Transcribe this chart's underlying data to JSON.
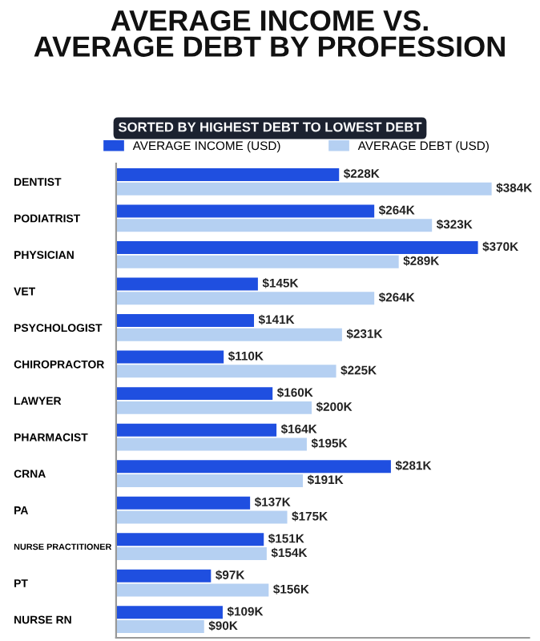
{
  "chart_data": {
    "type": "bar",
    "orientation": "horizontal",
    "title": "AVERAGE INCOME VS.\nAVERAGE DEBT BY PROFESSION",
    "subtitle": "SORTED BY HIGHEST DEBT TO LOWEST DEBT",
    "categories": [
      "DENTIST",
      "PODIATRIST",
      "PHYSICIAN",
      "VET",
      "PSYCHOLOGIST",
      "CHIROPRACTOR",
      "LAWYER",
      "PHARMACIST",
      "CRNA",
      "PA",
      "NURSE PRACTITIONER",
      "PT",
      "NURSE RN"
    ],
    "series": [
      {
        "name": "AVERAGE INCOME (USD)",
        "color": "#1f4fe0",
        "values": [
          228,
          264,
          370,
          145,
          141,
          110,
          160,
          164,
          281,
          137,
          151,
          97,
          109
        ],
        "value_labels": [
          "$228K",
          "$264K",
          "$370K",
          "$145K",
          "$141K",
          "$110K",
          "$160K",
          "$164K",
          "$281K",
          "$137K",
          "$151K",
          "$97K",
          "$109K"
        ]
      },
      {
        "name": "AVERAGE DEBT (USD)",
        "color": "#b5d0f2",
        "values": [
          384,
          323,
          289,
          264,
          231,
          225,
          200,
          195,
          191,
          175,
          154,
          156,
          90
        ],
        "value_labels": [
          "$384K",
          "$323K",
          "$289K",
          "$264K",
          "$231K",
          "$225K",
          "$200K",
          "$195K",
          "$191K",
          "$175K",
          "$154K",
          "$156K",
          "$90K"
        ]
      }
    ],
    "legend": "top",
    "grid": false
  }
}
